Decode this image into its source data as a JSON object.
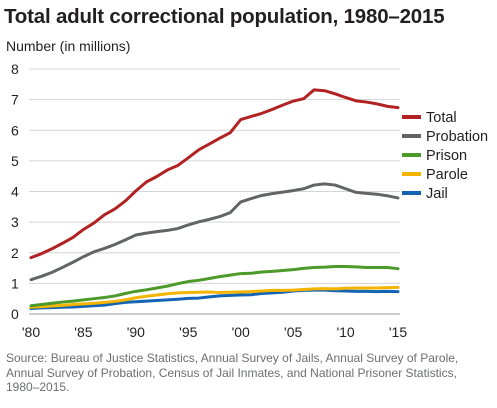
{
  "chart_data": {
    "type": "line",
    "title": "Total adult correctional population, 1980–2015",
    "ylabel": "Number (in millions)",
    "xlabel": "",
    "ylim": [
      0,
      8
    ],
    "xlim": [
      1980,
      2015
    ],
    "y_ticks": [
      "0",
      "1",
      "2",
      "3",
      "4",
      "5",
      "6",
      "7",
      "8"
    ],
    "x_ticks": [
      {
        "year": 1980,
        "label": "'80"
      },
      {
        "year": 1985,
        "label": "'85"
      },
      {
        "year": 1990,
        "label": "'90"
      },
      {
        "year": 1995,
        "label": "'95"
      },
      {
        "year": 2000,
        "label": "'00"
      },
      {
        "year": 2005,
        "label": "'05"
      },
      {
        "year": 2010,
        "label": "'10"
      },
      {
        "year": 2015,
        "label": "'15"
      }
    ],
    "grid": "horizontal",
    "legend": "right",
    "x": [
      1980,
      1981,
      1982,
      1983,
      1984,
      1985,
      1986,
      1987,
      1988,
      1989,
      1990,
      1991,
      1992,
      1993,
      1994,
      1995,
      1996,
      1997,
      1998,
      1999,
      2000,
      2001,
      2002,
      2003,
      2004,
      2005,
      2006,
      2007,
      2008,
      2009,
      2010,
      2011,
      2012,
      2013,
      2014,
      2015
    ],
    "series": [
      {
        "name": "Total",
        "color": "#b22222",
        "values": [
          1.84,
          1.97,
          2.13,
          2.31,
          2.5,
          2.76,
          2.97,
          3.24,
          3.43,
          3.69,
          4.02,
          4.31,
          4.49,
          4.7,
          4.85,
          5.1,
          5.36,
          5.55,
          5.74,
          5.92,
          6.35,
          6.45,
          6.55,
          6.68,
          6.82,
          6.95,
          7.03,
          7.32,
          7.29,
          7.19,
          7.07,
          6.96,
          6.92,
          6.86,
          6.78,
          6.74
        ]
      },
      {
        "name": "Probation",
        "color": "#626466",
        "values": [
          1.12,
          1.23,
          1.36,
          1.52,
          1.69,
          1.87,
          2.03,
          2.14,
          2.27,
          2.42,
          2.58,
          2.64,
          2.69,
          2.73,
          2.79,
          2.91,
          3.01,
          3.09,
          3.18,
          3.31,
          3.66,
          3.77,
          3.87,
          3.93,
          3.98,
          4.03,
          4.09,
          4.21,
          4.25,
          4.21,
          4.09,
          3.97,
          3.94,
          3.91,
          3.86,
          3.79
        ]
      },
      {
        "name": "Prison",
        "color": "#4c9a2a",
        "values": [
          0.27,
          0.31,
          0.35,
          0.39,
          0.42,
          0.46,
          0.5,
          0.54,
          0.59,
          0.67,
          0.74,
          0.79,
          0.85,
          0.91,
          0.99,
          1.06,
          1.1,
          1.16,
          1.22,
          1.27,
          1.32,
          1.33,
          1.37,
          1.39,
          1.42,
          1.45,
          1.49,
          1.52,
          1.53,
          1.55,
          1.55,
          1.54,
          1.52,
          1.52,
          1.52,
          1.48
        ]
      },
      {
        "name": "Parole",
        "color": "#f5b400",
        "values": [
          0.22,
          0.24,
          0.26,
          0.28,
          0.31,
          0.33,
          0.35,
          0.38,
          0.41,
          0.46,
          0.53,
          0.58,
          0.62,
          0.66,
          0.69,
          0.7,
          0.71,
          0.72,
          0.7,
          0.71,
          0.72,
          0.73,
          0.75,
          0.77,
          0.77,
          0.78,
          0.8,
          0.82,
          0.83,
          0.82,
          0.84,
          0.85,
          0.85,
          0.85,
          0.86,
          0.87
        ]
      },
      {
        "name": "Jail",
        "color": "#1464b4",
        "values": [
          0.18,
          0.2,
          0.21,
          0.22,
          0.23,
          0.25,
          0.27,
          0.29,
          0.34,
          0.38,
          0.4,
          0.42,
          0.44,
          0.46,
          0.48,
          0.51,
          0.52,
          0.56,
          0.59,
          0.61,
          0.62,
          0.63,
          0.67,
          0.69,
          0.71,
          0.75,
          0.77,
          0.78,
          0.78,
          0.76,
          0.75,
          0.74,
          0.74,
          0.73,
          0.74,
          0.73
        ]
      }
    ]
  },
  "source": "Source: Bureau of Justice Statistics, Annual Survey of Jails, Annual Survey of Parole, Annual Survey of Probation, Census of Jail Inmates, and National Prisoner Statistics, 1980–2015."
}
